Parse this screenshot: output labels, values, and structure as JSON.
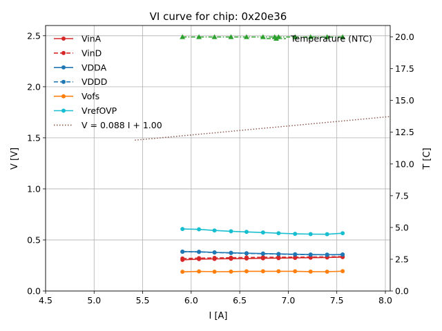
{
  "chart_data": {
    "type": "line",
    "title": "VI curve for chip: 0x20e36",
    "xlabel": "I [A]",
    "ylabel": "V [V]",
    "y2label": "T [C]",
    "xlim": [
      4.5,
      8.05
    ],
    "ylim": [
      0.0,
      2.6
    ],
    "y2lim": [
      0.0,
      20.9
    ],
    "xticks": [
      "4.5",
      "5.0",
      "5.5",
      "6.0",
      "6.5",
      "7.0",
      "7.5",
      "8.0"
    ],
    "yticks": [
      "0.0",
      "0.5",
      "1.0",
      "1.5",
      "2.0",
      "2.5"
    ],
    "y2ticks": [
      "0.0",
      "2.5",
      "5.0",
      "7.5",
      "10.0",
      "12.5",
      "15.0",
      "17.5",
      "20.0"
    ],
    "grid": true,
    "x": [
      5.91,
      6.08,
      6.24,
      6.41,
      6.57,
      6.74,
      6.9,
      7.07,
      7.23,
      7.4,
      7.56
    ],
    "series": [
      {
        "name": "VinA",
        "color": "#d62728",
        "dash": "solid",
        "axis": "left",
        "values": [
          0.305,
          0.312,
          0.314,
          0.316,
          0.318,
          0.32,
          0.322,
          0.324,
          0.326,
          0.328,
          0.332
        ]
      },
      {
        "name": "VinD",
        "color": "#d62728",
        "dash": "dashed",
        "axis": "left",
        "values": [
          0.318,
          0.322,
          0.324,
          0.326,
          0.328,
          0.33,
          0.331,
          0.332,
          0.333,
          0.334,
          0.336
        ]
      },
      {
        "name": "VDDA",
        "color": "#1f77b4",
        "dash": "solid",
        "axis": "left",
        "values": [
          0.386,
          0.384,
          0.378,
          0.374,
          0.37,
          0.367,
          0.363,
          0.36,
          0.357,
          0.356,
          0.358
        ]
      },
      {
        "name": "VDDD",
        "color": "#1f77b4",
        "dash": "dashed",
        "axis": "left",
        "values": [
          0.384,
          0.382,
          0.377,
          0.372,
          0.368,
          0.365,
          0.361,
          0.358,
          0.355,
          0.354,
          0.356
        ]
      },
      {
        "name": "Vofs",
        "color": "#ff7f0e",
        "dash": "solid",
        "axis": "left",
        "values": [
          0.188,
          0.192,
          0.189,
          0.19,
          0.193,
          0.193,
          0.193,
          0.193,
          0.19,
          0.189,
          0.194
        ]
      },
      {
        "name": "VrefOVP",
        "color": "#17becf",
        "dash": "solid",
        "axis": "left",
        "values": [
          0.607,
          0.604,
          0.593,
          0.585,
          0.579,
          0.573,
          0.566,
          0.56,
          0.557,
          0.556,
          0.566
        ]
      }
    ],
    "fit_line": {
      "name": "V = 0.088 I + 1.00",
      "color": "#8c564b",
      "dash": "dotted",
      "axis": "left",
      "x": [
        5.42,
        8.05
      ],
      "slope": 0.088,
      "intercept": 1.0
    },
    "temperature": {
      "name": "Temperature (NTC)",
      "color": "#2ca02c",
      "dash": "dashdot",
      "axis": "right",
      "x": [
        5.91,
        6.08,
        6.24,
        6.41,
        6.57,
        6.74,
        6.86,
        6.9,
        7.07,
        7.23,
        7.4,
        7.56
      ],
      "values": [
        20.0,
        20.0,
        20.0,
        20.0,
        20.0,
        20.0,
        20.0,
        20.0,
        20.0,
        20.0,
        20.0,
        20.0
      ]
    },
    "legend": [
      "VinA",
      "VinD",
      "VDDA",
      "VDDD",
      "Vofs",
      "VrefOVP",
      "V = 0.088 I + 1.00"
    ],
    "legend_position": "upper-left",
    "legend2": [
      "Temperature (NTC)"
    ],
    "legend2_position": "upper-right"
  }
}
